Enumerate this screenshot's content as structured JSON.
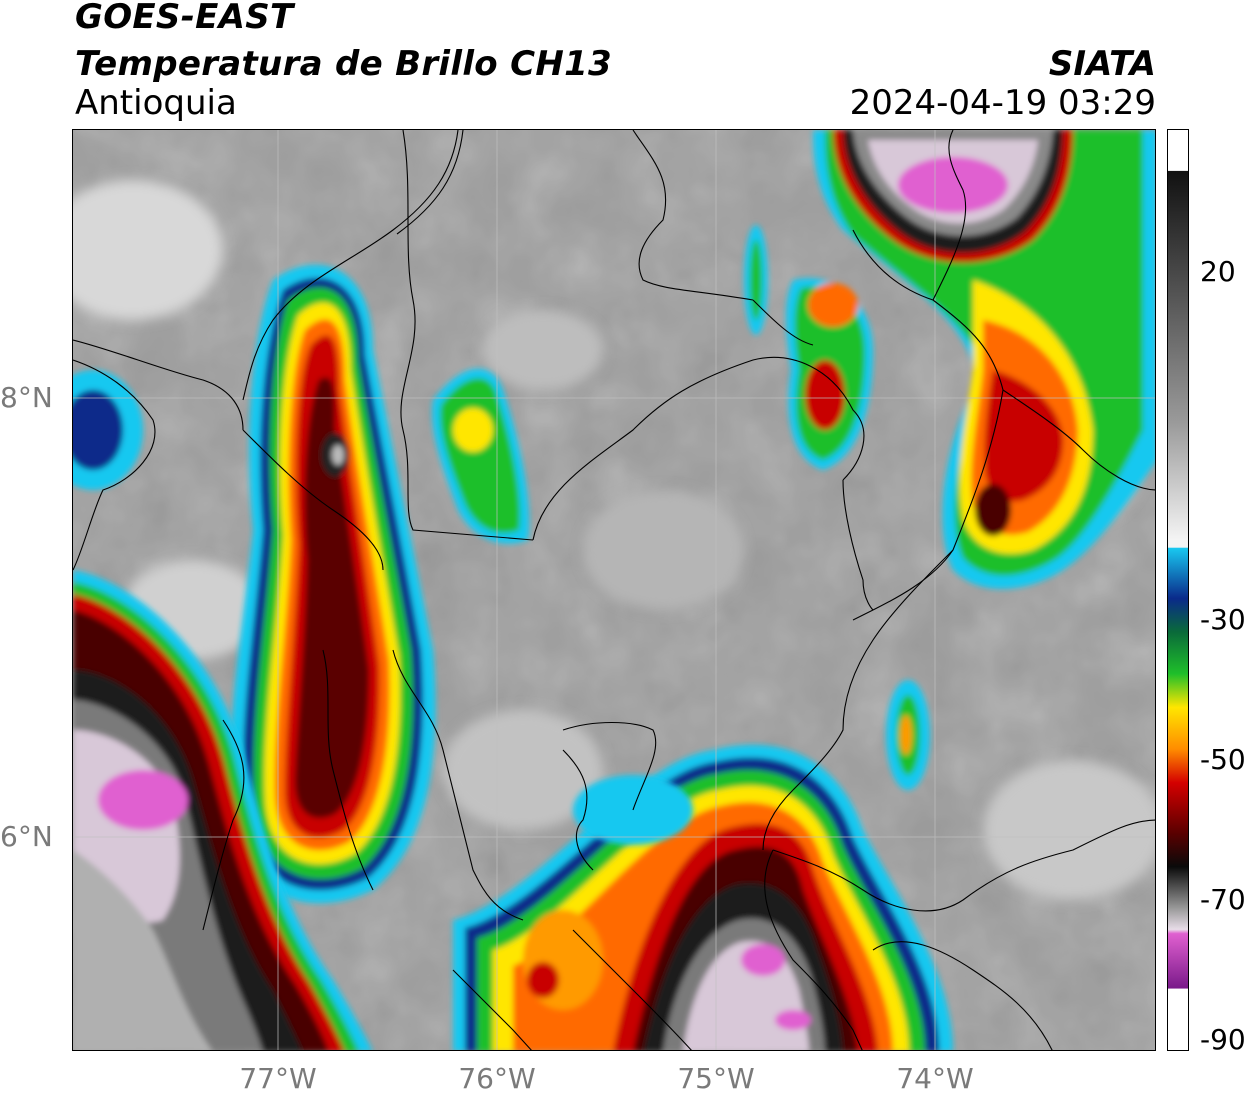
{
  "header": {
    "satellite": "GOES-EAST",
    "product": "Temperatura de Brillo CH13",
    "region": "Antioquia",
    "organization": "SIATA",
    "datetime": "2024-04-19 03:29"
  },
  "map": {
    "lat_labels": [
      "8°N",
      "6°N"
    ],
    "lon_labels": [
      "77°W",
      "76°W",
      "75°W",
      "74°W"
    ],
    "colors": {
      "clear_background": "#9c9c9c",
      "border_line": "#000000",
      "grid_line": "#b0b0b0"
    },
    "layers": [
      "brightness-temperature-field",
      "administrative-borders",
      "coastline",
      "lat-lon-grid"
    ]
  },
  "colorbar": {
    "tick_labels": [
      "20",
      "-30",
      "-50",
      "-70",
      "-90"
    ],
    "units_hint": "",
    "colors": {
      "warm_gray_top": "#111111",
      "light_gray": "#f4f4f4",
      "cyan": "#19c8f0",
      "dark_blue": "#0a2a8a",
      "green": "#1fbf2a",
      "yellow": "#ffe600",
      "orange": "#ff8c00",
      "red": "#d40000",
      "dark_red": "#5a0000",
      "black": "#0a0a0a",
      "pink": "#e060d0",
      "purple": "#7a1a8a"
    }
  }
}
